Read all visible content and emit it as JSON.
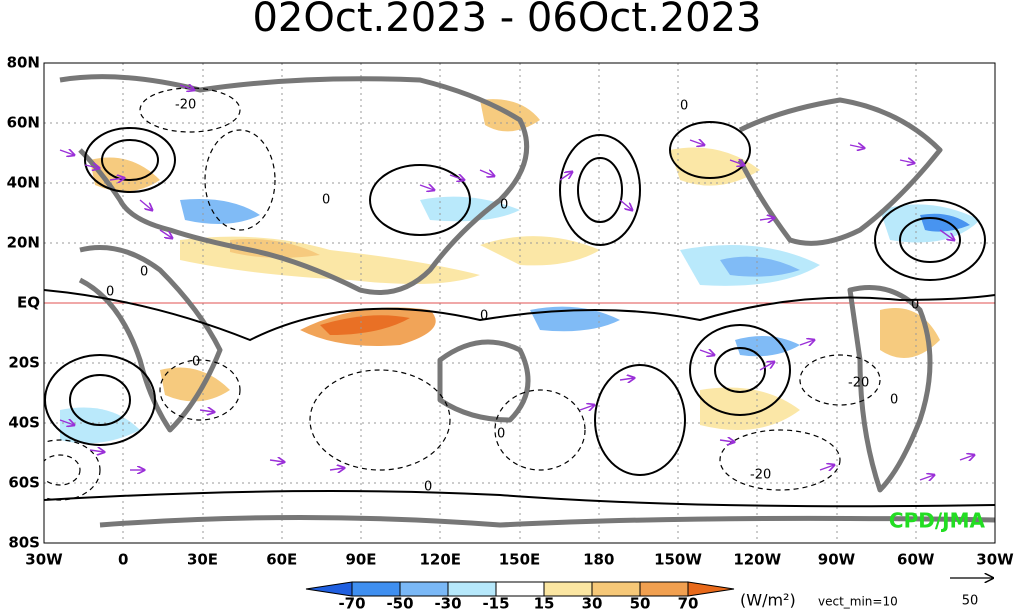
{
  "title": "02Oct.2023 - 06Oct.2023",
  "lat_labels": [
    "80N",
    "60N",
    "40N",
    "20N",
    "EQ",
    "20S",
    "40S",
    "60S",
    "80S"
  ],
  "lon_labels": [
    "30W",
    "0",
    "30E",
    "60E",
    "90E",
    "120E",
    "150E",
    "180",
    "150W",
    "120W",
    "90W",
    "60W",
    "30W"
  ],
  "colorbar": {
    "levels": [
      -70,
      -50,
      -30,
      -15,
      15,
      30,
      50,
      70
    ],
    "colors": [
      "#1f5fe0",
      "#3f8ff0",
      "#7ab8f6",
      "#b6e8fb",
      "#ffffff",
      "#fbe6a2",
      "#f6c878",
      "#f1a050",
      "#e8691a"
    ],
    "units": "(W/m²)",
    "vector_note": "vect_min=10",
    "reference_vector": "50"
  },
  "credit": "CPD/JMA",
  "contour_labels": [
    "-20",
    "0",
    "0",
    "0",
    "0",
    "0",
    "0",
    "0",
    "0",
    "-20",
    "0",
    "0",
    "-20",
    "0"
  ]
}
